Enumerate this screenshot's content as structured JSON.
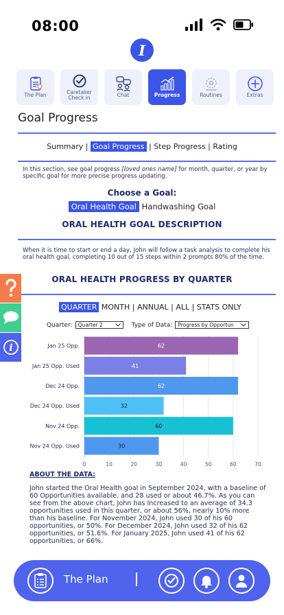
{
  "status": {
    "time": "08:00"
  },
  "logo": {
    "letter": "I"
  },
  "tabs": [
    {
      "label": "The Plan",
      "icon": "clipboard-icon"
    },
    {
      "label": "Caretaker Check in",
      "icon": "check-circle-icon"
    },
    {
      "label": "Chat",
      "icon": "chat-people-icon"
    },
    {
      "label": "Progress",
      "icon": "bar-chart-icon",
      "active": true
    },
    {
      "label": "Routines",
      "icon": "routines-icon"
    },
    {
      "label": "Extras",
      "icon": "plus-circle-icon"
    }
  ],
  "page_title": "Goal Progress",
  "subnav": {
    "summary": "Summary |",
    "goal_progress": "Goal Progress",
    "rest": "| Step Progress | Rating"
  },
  "intro": {
    "before": "In this section, see goal progress ",
    "italic": "[loved ones name]",
    "after": " for month, quarter, or year by specific goal for more precise progress updating."
  },
  "choose_goal": "Choose a Goal:",
  "goals": {
    "selected": "Oral Health Goal",
    "other": "Handwashing Goal"
  },
  "description_heading": "ORAL HEALTH GOAL DESCRIPTION",
  "description": "When it is time to start or end a day, John will follow a task analysis to complete his oral health goal, completing 10 out of 15 steps within 2 prompts 80% of the time.",
  "progress_heading": "ORAL HEALTH PROGRESS BY QUARTER",
  "views": {
    "selected": "QUARTER",
    "rest": "MONTH | ANNUAL | ALL | STATS ONLY"
  },
  "filters": {
    "quarter_label": "Quarter:",
    "quarter_value": "Quarter 2",
    "type_label": "Type of Data:",
    "type_value": "Progress by Opportun"
  },
  "chart_data": {
    "type": "bar",
    "orientation": "horizontal",
    "categories": [
      "Jan 25 Opp.",
      "Jan 25 Opp. Used",
      "Dec 24 Opp.",
      "Dec 24 Opp. Used",
      "Nov 24 Opp.",
      "Nov 24 Opp. Used"
    ],
    "values": [
      62,
      41,
      62,
      32,
      60,
      30
    ],
    "colors": [
      "#9b66b2",
      "#7b80e4",
      "#4f98ee",
      "#4fc0f5",
      "#17c1d4",
      "#4f98ee"
    ],
    "label_colors": [
      "#ffffff",
      "#ffffff",
      "#ffffff",
      "#1a1a3a",
      "#1a1a3a",
      "#1a1a3a"
    ],
    "xlim": [
      0,
      70
    ],
    "xticks": [
      0,
      10,
      20,
      30,
      40,
      50,
      60,
      70
    ],
    "grid": true
  },
  "about": {
    "heading": "ABOUT THE DATA:",
    "text": "John started the Oral Health goal in September 2024, with a baseline of 60 Opportunities available, and 28 used or about 46.7%. As you can see from the above chart, John has Increased to an average of 34.3 opportunities used in this quarter, or about 56%, nearly 10% more than his baseline. For November 2024, John used 30 of his 60 opportunities, or 50%. For December 2024, John used 32 of his 62 opportunities, or 51.6%.  For January 2025, John used 41 of his 62 opportunities, or 66%."
  },
  "bottom_bar": {
    "label": "The Plan"
  },
  "colors": {
    "accent": "#3b55e6",
    "bar": "#4f63ec",
    "help": "#f47c48",
    "chat": "#3fcf8e",
    "info": "#4f63ec"
  }
}
